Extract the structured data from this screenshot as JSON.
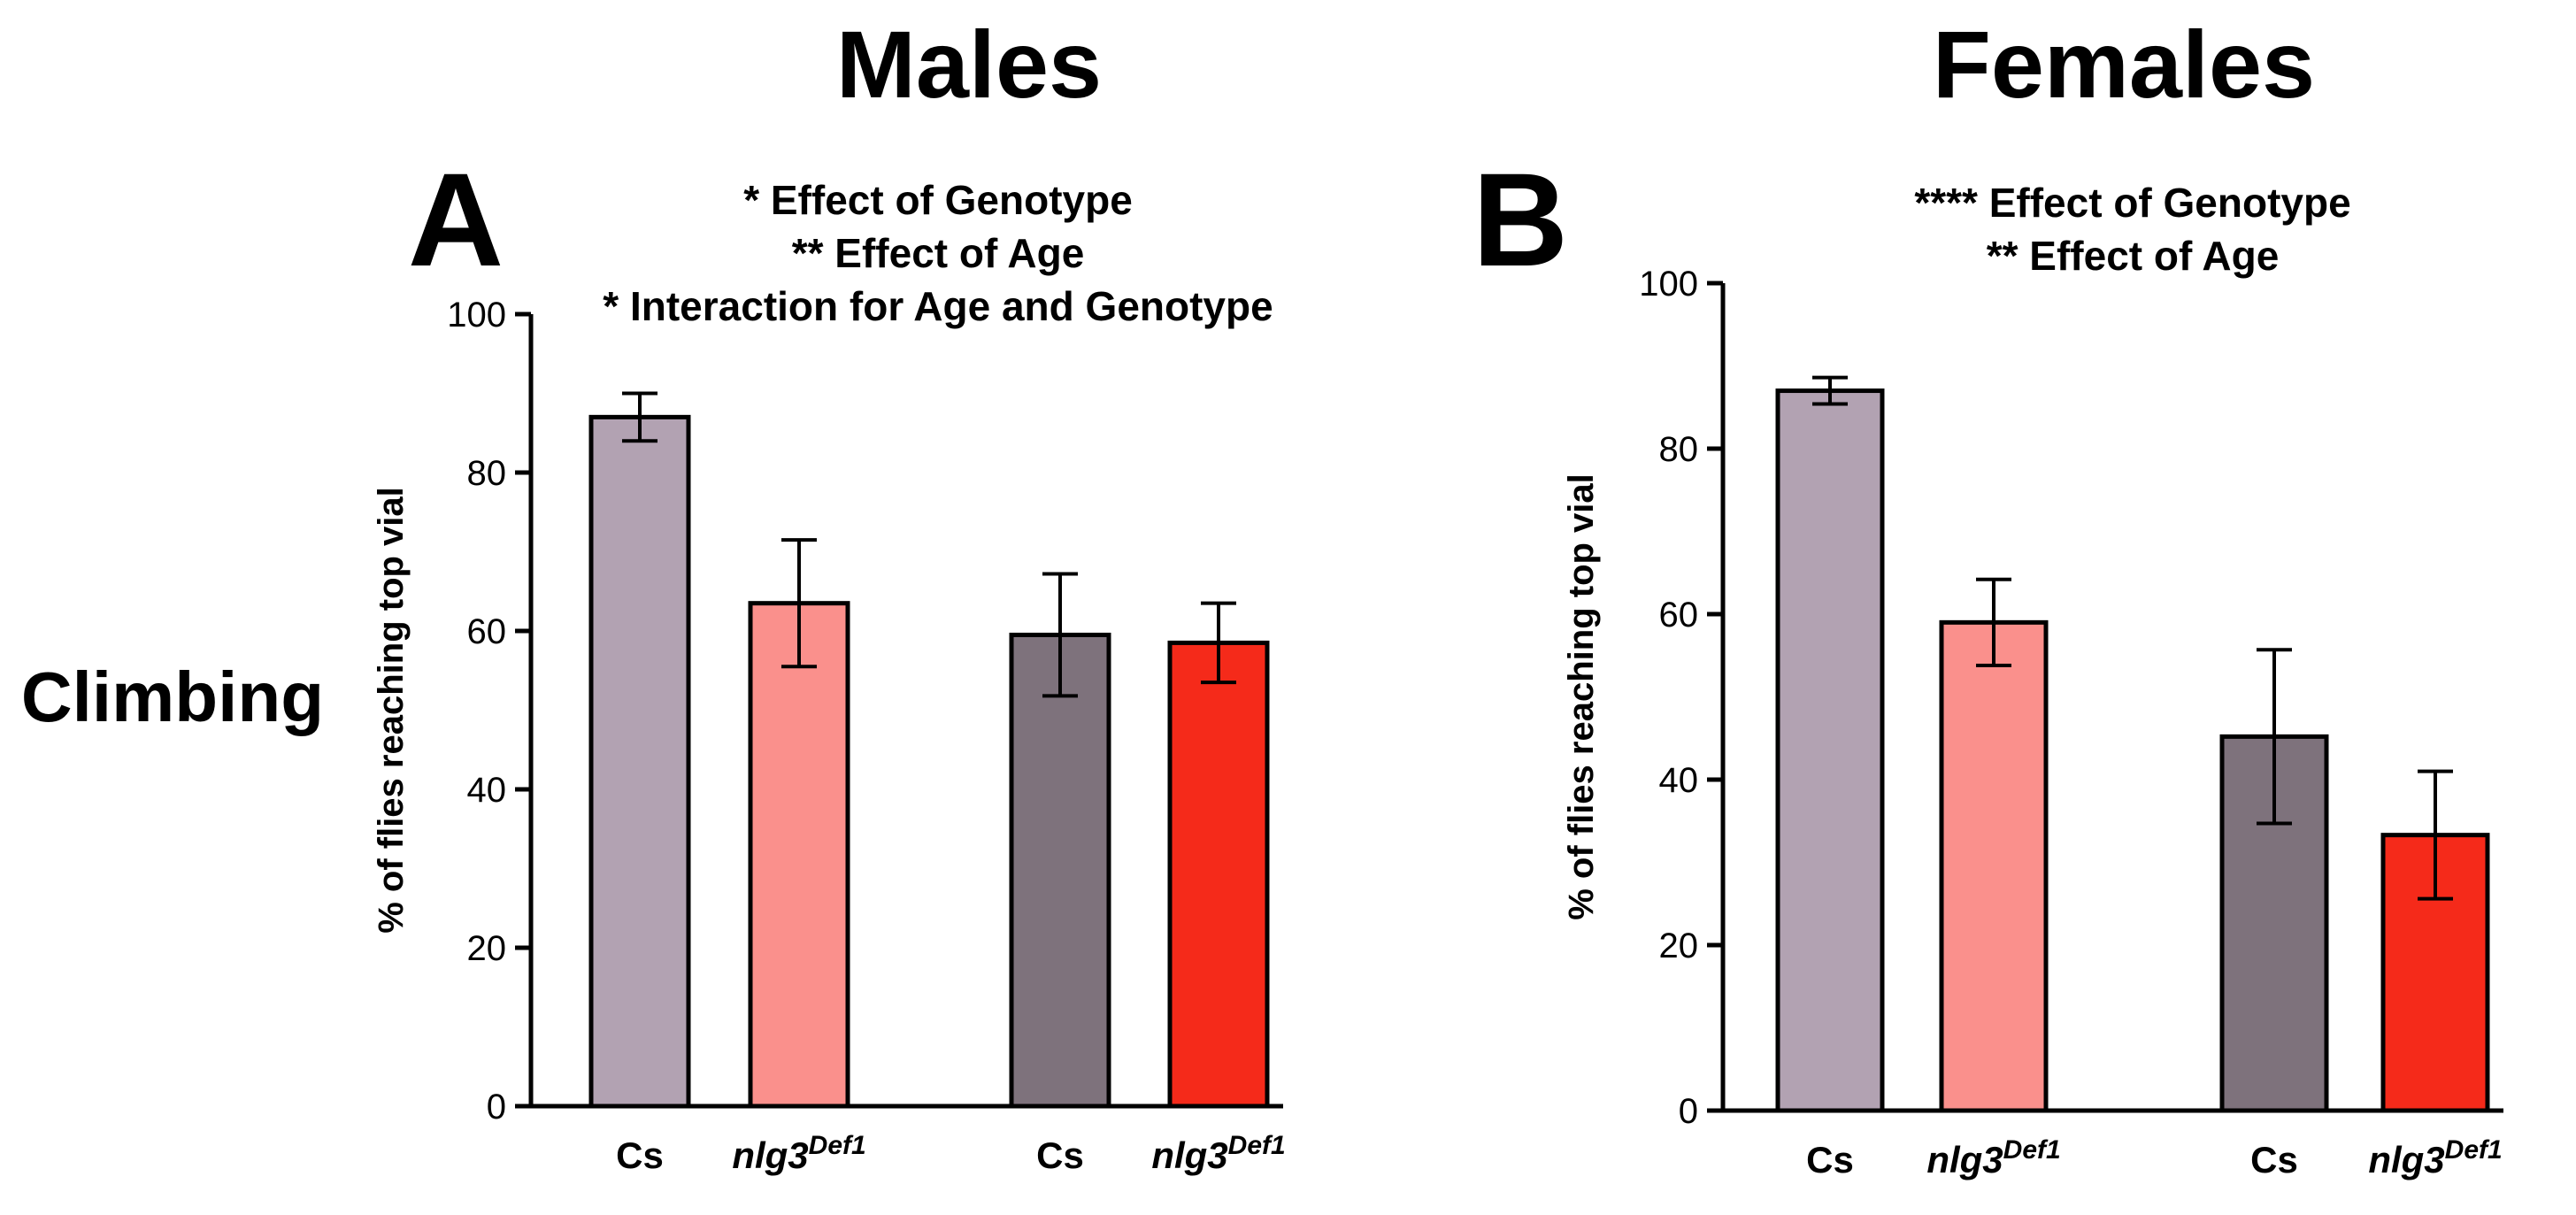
{
  "row_label": "Climbing",
  "panels": [
    {
      "letter": "A",
      "header": "Males"
    },
    {
      "letter": "B",
      "header": "Females"
    }
  ],
  "colors": {
    "cs_young": "#b2a2b2",
    "nlg3_young": "#fa908c",
    "cs_old": "#7e727c",
    "nlg3_old": "#f52a1a",
    "axis": "#000000"
  },
  "chart_data": [
    {
      "type": "bar",
      "title": "Males",
      "annotations": [
        "* Effect of Genotype",
        "** Effect of Age",
        "* Interaction for Age and Genotype"
      ],
      "ylabel": "% of flies reaching top vial",
      "ylim": [
        0,
        100
      ],
      "yticks": [
        "0",
        "20",
        "40",
        "60",
        "80",
        "100"
      ],
      "categories": [
        {
          "label": "Cs",
          "sup": ""
        },
        {
          "label": "nlg3",
          "sup": "Def1"
        },
        {
          "label": "Cs",
          "sup": ""
        },
        {
          "label": "nlg3",
          "sup": "Def1"
        }
      ],
      "values": [
        87,
        63.5,
        59.5,
        58.5
      ],
      "errors": [
        3,
        8,
        7.7,
        5
      ],
      "bar_colors": [
        "cs_young",
        "nlg3_young",
        "cs_old",
        "nlg3_old"
      ],
      "grid": false
    },
    {
      "type": "bar",
      "title": "Females",
      "annotations": [
        "**** Effect of Genotype",
        "** Effect of Age"
      ],
      "ylabel": "% of flies reaching top vial",
      "ylim": [
        0,
        100
      ],
      "yticks": [
        "0",
        "20",
        "40",
        "60",
        "80",
        "100"
      ],
      "categories": [
        {
          "label": "Cs",
          "sup": ""
        },
        {
          "label": "nlg3",
          "sup": "Def1"
        },
        {
          "label": "Cs",
          "sup": ""
        },
        {
          "label": "nlg3",
          "sup": "Def1"
        }
      ],
      "values": [
        87,
        59,
        45.2,
        33.3
      ],
      "errors": [
        1.6,
        5.2,
        10.5,
        7.7
      ],
      "bar_colors": [
        "cs_young",
        "nlg3_young",
        "cs_old",
        "nlg3_old"
      ],
      "grid": false
    }
  ]
}
